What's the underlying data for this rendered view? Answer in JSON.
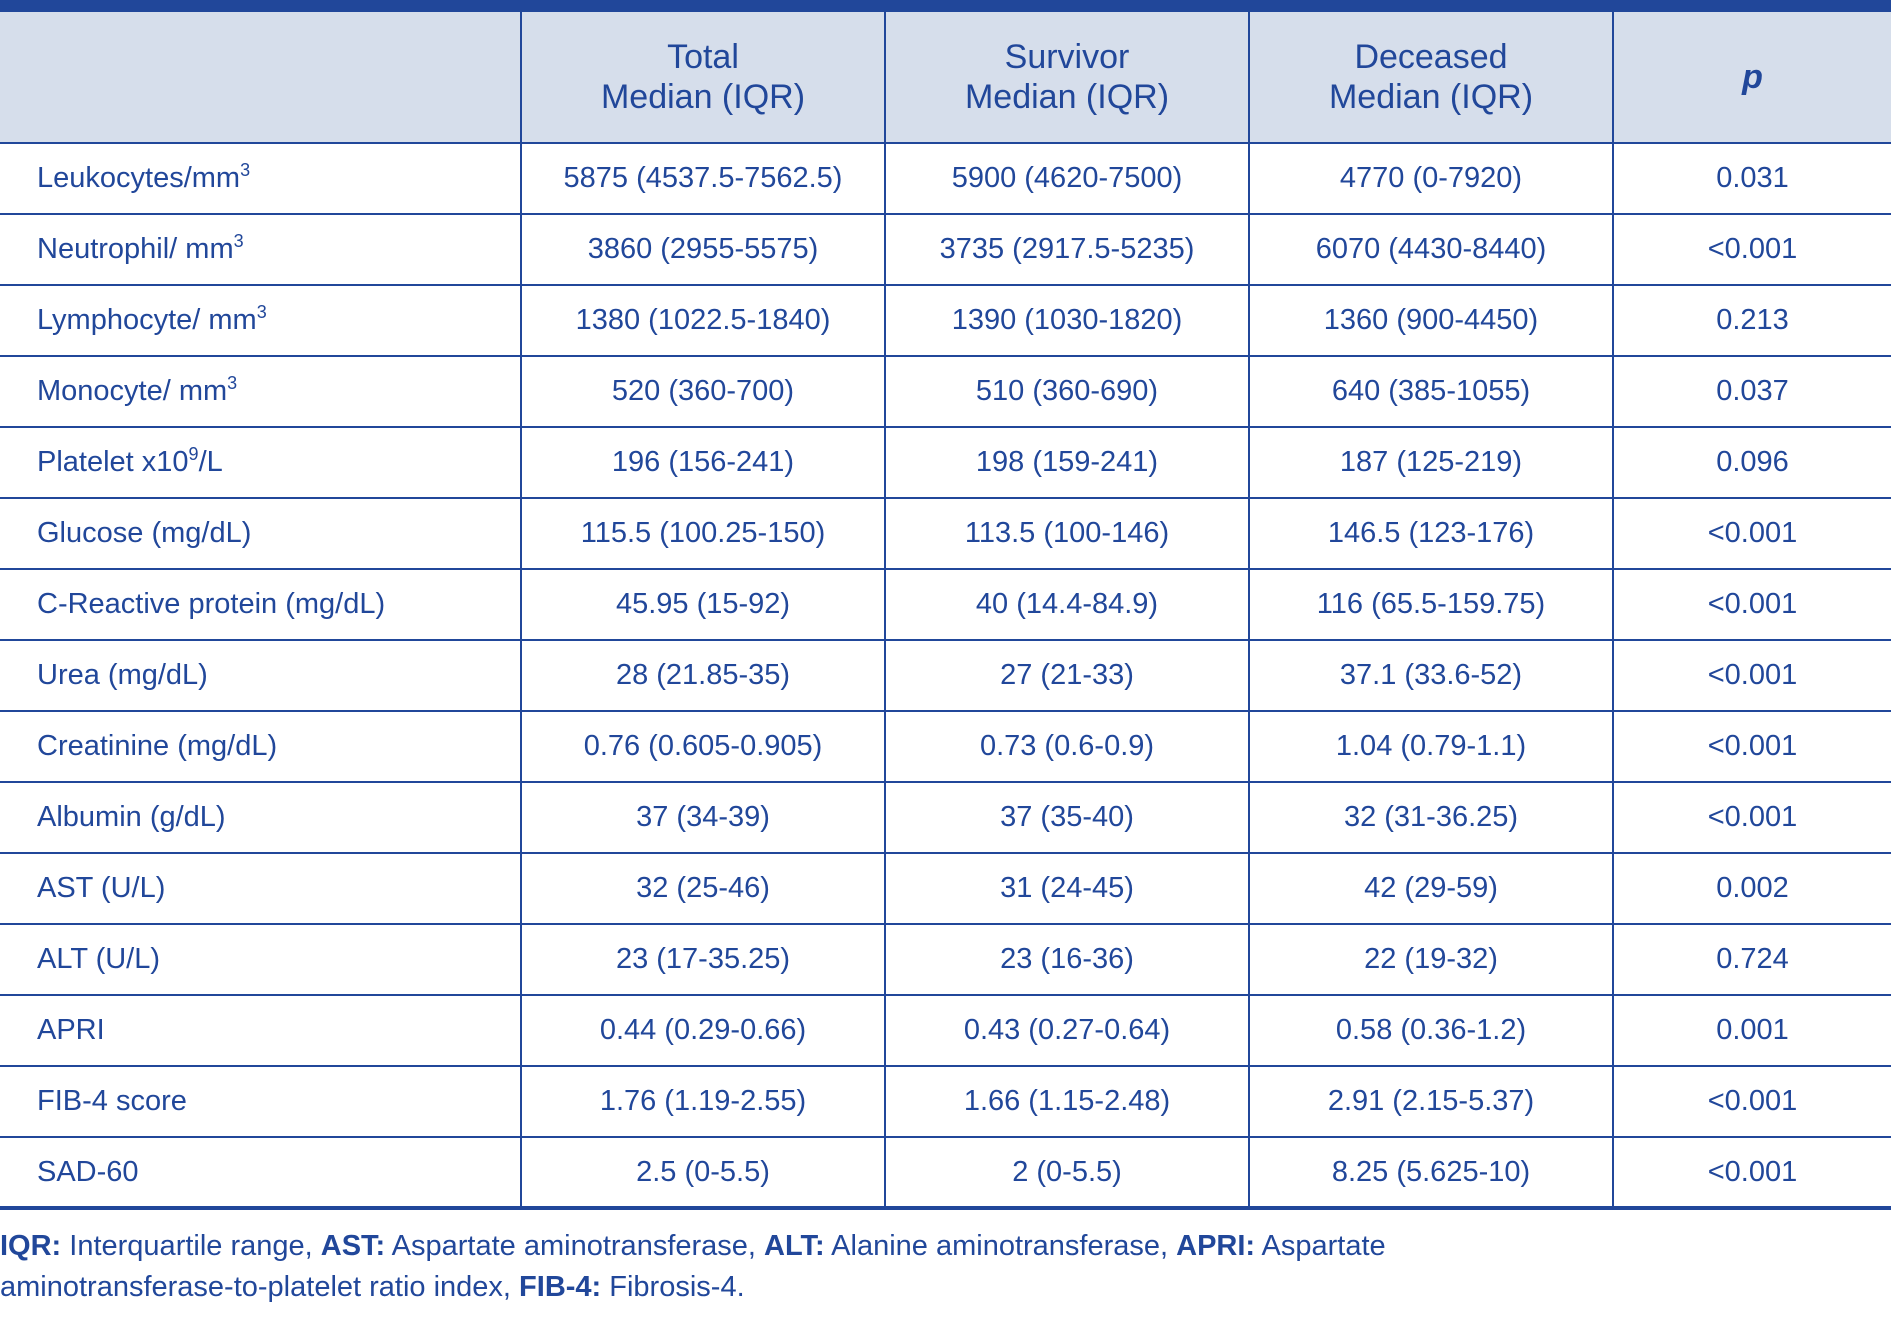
{
  "table": {
    "headers": [
      {
        "line1": "",
        "line2": ""
      },
      {
        "line1": "Total",
        "line2": "Median (IQR)"
      },
      {
        "line1": "Survivor",
        "line2": "Median (IQR)"
      },
      {
        "line1": "Deceased",
        "line2": "Median (IQR)"
      },
      {
        "line1": "p",
        "line2": ""
      }
    ],
    "rows": [
      {
        "param": "Leukocytes/mm",
        "sup": "3",
        "total": "5875 (4537.5-7562.5)",
        "survivor": "5900 (4620-7500)",
        "deceased": "4770 (0-7920)",
        "p": "0.031"
      },
      {
        "param": "Neutrophil/ mm",
        "sup": "3",
        "total": "3860 (2955-5575)",
        "survivor": "3735 (2917.5-5235)",
        "deceased": "6070 (4430-8440)",
        "p": "<0.001"
      },
      {
        "param": "Lymphocyte/ mm",
        "sup": "3",
        "total": "1380 (1022.5-1840)",
        "survivor": "1390 (1030-1820)",
        "deceased": "1360 (900-4450)",
        "p": "0.213"
      },
      {
        "param": "Monocyte/ mm",
        "sup": "3",
        "total": "520 (360-700)",
        "survivor": "510 (360-690)",
        "deceased": "640 (385-1055)",
        "p": "0.037"
      },
      {
        "param": "Platelet x10",
        "sup": "9",
        "param_suffix": "/L",
        "total": "196 (156-241)",
        "survivor": "198 (159-241)",
        "deceased": "187 (125-219)",
        "p": "0.096"
      },
      {
        "param": "Glucose (mg/dL)",
        "total": "115.5 (100.25-150)",
        "survivor": "113.5 (100-146)",
        "deceased": "146.5 (123-176)",
        "p": "<0.001"
      },
      {
        "param": "C-Reactive protein (mg/dL)",
        "total": "45.95 (15-92)",
        "survivor": "40 (14.4-84.9)",
        "deceased": "116 (65.5-159.75)",
        "p": "<0.001"
      },
      {
        "param": "Urea (mg/dL)",
        "total": "28 (21.85-35)",
        "survivor": "27 (21-33)",
        "deceased": "37.1 (33.6-52)",
        "p": "<0.001"
      },
      {
        "param": "Creatinine (mg/dL)",
        "total": "0.76 (0.605-0.905)",
        "survivor": "0.73 (0.6-0.9)",
        "deceased": "1.04 (0.79-1.1)",
        "p": "<0.001"
      },
      {
        "param": "Albumin (g/dL)",
        "total": "37 (34-39)",
        "survivor": "37 (35-40)",
        "deceased": "32 (31-36.25)",
        "p": "<0.001"
      },
      {
        "param": "AST (U/L)",
        "total": "32 (25-46)",
        "survivor": "31 (24-45)",
        "deceased": "42 (29-59)",
        "p": "0.002"
      },
      {
        "param": "ALT (U/L)",
        "total": "23 (17-35.25)",
        "survivor": "23 (16-36)",
        "deceased": "22 (19-32)",
        "p": "0.724"
      },
      {
        "param": "APRI",
        "total": "0.44 (0.29-0.66)",
        "survivor": "0.43 (0.27-0.64)",
        "deceased": "0.58 (0.36-1.2)",
        "p": "0.001"
      },
      {
        "param": "FIB-4 score",
        "total": "1.76 (1.19-2.55)",
        "survivor": "1.66 (1.15-2.48)",
        "deceased": "2.91 (2.15-5.37)",
        "p": "<0.001"
      },
      {
        "param": "SAD-60",
        "total": "2.5 (0-5.5)",
        "survivor": "2 (0-5.5)",
        "deceased": "8.25 (5.625-10)",
        "p": "<0.001"
      }
    ]
  },
  "footnote": {
    "items": [
      {
        "abbr": "IQR:",
        "text": " Interquartile range, "
      },
      {
        "abbr": "AST:",
        "text": " Aspartate aminotransferase, "
      },
      {
        "abbr": "ALT:",
        "text": " Alanine aminotransferase, "
      },
      {
        "abbr": "APRI:",
        "text": " Aspartate aminotransferase-to-platelet ratio index, "
      },
      {
        "abbr": "FIB-4:",
        "text": " Fibrosis-4."
      }
    ]
  },
  "colors": {
    "text": "#21479a",
    "header_bg": "#d6deeb",
    "rule": "#21479a"
  }
}
